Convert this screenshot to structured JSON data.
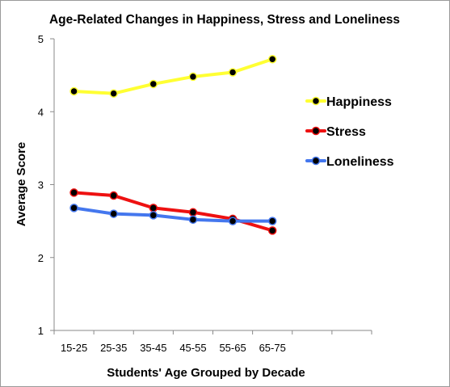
{
  "chart_data": {
    "type": "line",
    "title": "Age-Related Changes in Happiness, Stress and Loneliness",
    "xlabel": "Students' Age Grouped by Decade",
    "ylabel": "Average Score",
    "categories": [
      "15-25",
      "25-35",
      "35-45",
      "45-55",
      "55-65",
      "65-75"
    ],
    "ylim": [
      1,
      5
    ],
    "yticks": [
      1,
      2,
      3,
      4,
      5
    ],
    "grid": false,
    "legend_position": "right",
    "series": [
      {
        "name": "Happiness",
        "color": "#ffff33",
        "marker_color": "#000000",
        "values": [
          4.28,
          4.25,
          4.38,
          4.48,
          4.54,
          4.72
        ]
      },
      {
        "name": "Stress",
        "color": "#ee1111",
        "marker_color": "#000000",
        "values": [
          2.89,
          2.85,
          2.68,
          2.62,
          2.53,
          2.37
        ]
      },
      {
        "name": "Loneliness",
        "color": "#4477ee",
        "marker_color": "#000000",
        "values": [
          2.68,
          2.6,
          2.58,
          2.52,
          2.5,
          2.5
        ]
      }
    ]
  }
}
